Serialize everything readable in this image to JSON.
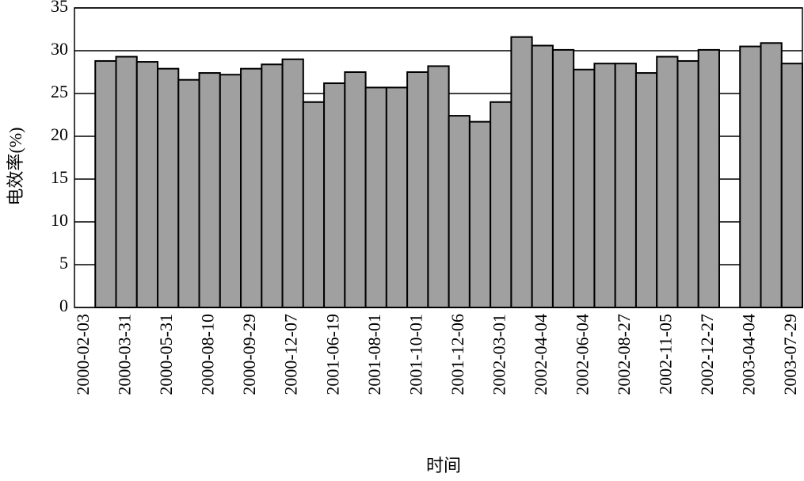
{
  "chart_data": {
    "type": "bar",
    "ylabel": "电效率(%)",
    "xlabel": "时间",
    "categories": [
      "2000-02-03",
      null,
      "2000-03-31",
      null,
      "2000-05-31",
      null,
      "2000-08-10",
      null,
      "2000-09-29",
      null,
      "2000-12-07",
      null,
      "2001-06-19",
      null,
      "2001-08-01",
      null,
      "2001-10-01",
      null,
      "2001-12-06",
      null,
      "2002-03-01",
      null,
      "2002-04-04",
      null,
      "2002-06-04",
      null,
      "2002-08-27",
      null,
      "2002-11-05",
      null,
      "2002-12-27",
      null,
      "2003-04-04",
      null,
      "2003-07-29"
    ],
    "values": [
      null,
      28.8,
      29.3,
      28.7,
      27.9,
      26.6,
      27.4,
      27.2,
      27.9,
      28.4,
      29.0,
      24.0,
      26.2,
      27.5,
      25.7,
      25.7,
      27.5,
      28.2,
      22.4,
      21.7,
      24.0,
      31.6,
      30.6,
      30.1,
      27.8,
      28.5,
      28.5,
      27.4,
      29.3,
      28.8,
      30.1,
      null,
      30.5,
      30.9,
      28.5
    ],
    "color": "#a0a0a0",
    "ylim": [
      0,
      35
    ],
    "yticks": [
      0,
      5,
      10,
      15,
      20,
      25,
      30,
      35
    ],
    "grid": true
  }
}
